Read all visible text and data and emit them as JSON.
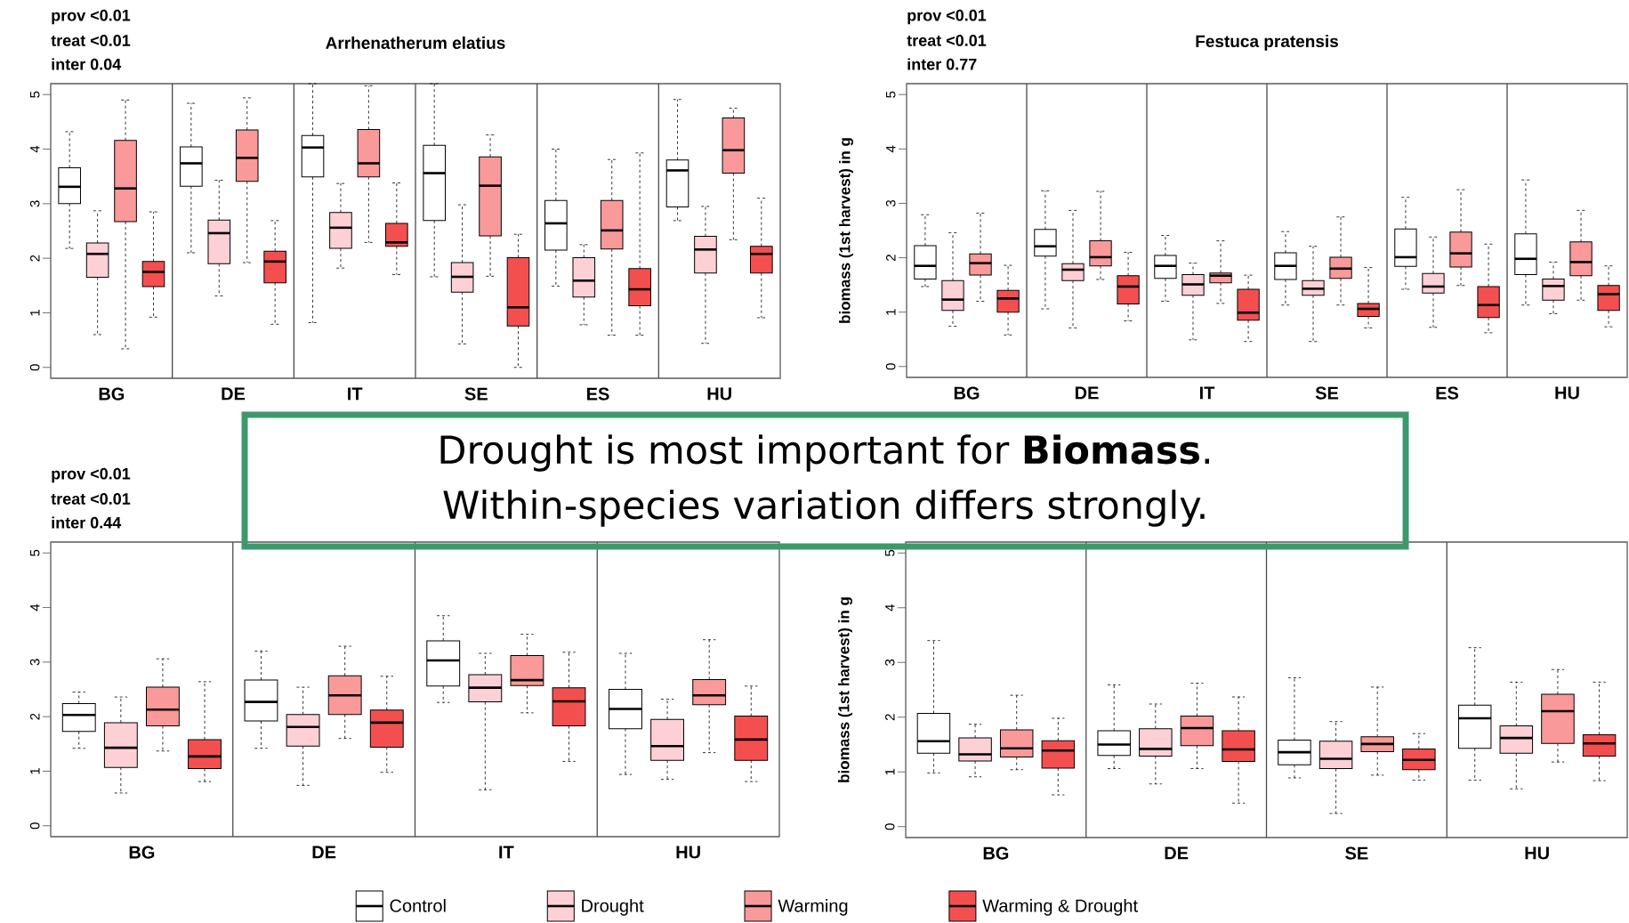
{
  "chart_data": [
    {
      "type": "box",
      "title": "Arrhenatherum elatius",
      "annotations": [
        "prov <0.01",
        "treat <0.01",
        "inter 0.04",
        "Drought is most important for **Biomass**.",
        "Within-species variation differs strongly."
      ],
      "categories": [
        "BG",
        "DE",
        "IT",
        "SE",
        "ES",
        "HU"
      ],
      "ylim": [
        -0.2,
        5.2
      ],
      "yticks": [
        0,
        1,
        2,
        3,
        4,
        5
      ],
      "series": [
        {
          "color": "#ffffff",
          "boxes": [
            {
              "low": 2.18,
              "q1": 3.0,
              "median": 3.31,
              "q3": 3.66,
              "high": 4.32
            },
            {
              "low": 2.1,
              "q1": 3.32,
              "median": 3.74,
              "q3": 4.04,
              "high": 4.84
            },
            {
              "low": 0.82,
              "q1": 3.49,
              "median": 4.03,
              "q3": 4.25,
              "high": 5.2
            },
            {
              "low": 1.66,
              "q1": 2.69,
              "median": 3.56,
              "q3": 4.07,
              "high": 5.2
            },
            {
              "low": 1.49,
              "q1": 2.15,
              "median": 2.64,
              "q3": 3.06,
              "high": 4.0
            },
            {
              "low": 2.69,
              "q1": 2.94,
              "median": 3.61,
              "q3": 3.8,
              "high": 4.91
            }
          ]
        },
        {
          "color": "#fdd0d6",
          "boxes": [
            {
              "low": 0.6,
              "q1": 1.65,
              "median": 2.08,
              "q3": 2.28,
              "high": 2.87
            },
            {
              "low": 1.31,
              "q1": 1.9,
              "median": 2.46,
              "q3": 2.7,
              "high": 3.43
            },
            {
              "low": 1.82,
              "q1": 2.18,
              "median": 2.56,
              "q3": 2.84,
              "high": 3.37
            },
            {
              "low": 0.43,
              "q1": 1.38,
              "median": 1.66,
              "q3": 1.92,
              "high": 2.98
            },
            {
              "low": 0.78,
              "q1": 1.29,
              "median": 1.59,
              "q3": 2.01,
              "high": 2.25
            },
            {
              "low": 0.44,
              "q1": 1.73,
              "median": 2.16,
              "q3": 2.4,
              "high": 2.95
            }
          ]
        },
        {
          "color": "#f99999",
          "boxes": [
            {
              "low": 0.34,
              "q1": 2.67,
              "median": 3.28,
              "q3": 4.16,
              "high": 4.9
            },
            {
              "low": 1.92,
              "q1": 3.41,
              "median": 3.84,
              "q3": 4.35,
              "high": 4.94
            },
            {
              "low": 2.29,
              "q1": 3.49,
              "median": 3.74,
              "q3": 4.36,
              "high": 5.16
            },
            {
              "low": 1.67,
              "q1": 2.41,
              "median": 3.33,
              "q3": 3.86,
              "high": 4.26
            },
            {
              "low": 0.59,
              "q1": 2.17,
              "median": 2.51,
              "q3": 3.06,
              "high": 3.81
            },
            {
              "low": 2.34,
              "q1": 3.56,
              "median": 3.98,
              "q3": 4.57,
              "high": 4.75
            }
          ]
        },
        {
          "color": "#f44f4f",
          "boxes": [
            {
              "low": 0.92,
              "q1": 1.48,
              "median": 1.75,
              "q3": 1.94,
              "high": 2.85
            },
            {
              "low": 0.79,
              "q1": 1.55,
              "median": 1.94,
              "q3": 2.13,
              "high": 2.69
            },
            {
              "low": 1.7,
              "q1": 2.22,
              "median": 2.29,
              "q3": 2.64,
              "high": 3.38
            },
            {
              "low": 0,
              "q1": 0.76,
              "median": 1.1,
              "q3": 2.01,
              "high": 2.44
            },
            {
              "low": 0.59,
              "q1": 1.13,
              "median": 1.43,
              "q3": 1.81,
              "high": 3.93
            },
            {
              "low": 0.91,
              "q1": 1.73,
              "median": 2.08,
              "q3": 2.22,
              "high": 3.1
            }
          ]
        }
      ]
    },
    {
      "type": "box",
      "title": "Festuca pratensis",
      "ylabel": "biomass (1st harvest) in g",
      "annotations": [
        "prov <0.01",
        "treat <0.01",
        "inter 0.77"
      ],
      "categories": [
        "BG",
        "DE",
        "IT",
        "SE",
        "ES",
        "HU"
      ],
      "ylim": [
        -0.2,
        5.2
      ],
      "yticks": [
        0,
        1,
        2,
        3,
        4,
        5
      ],
      "series": [
        {
          "color": "#ffffff",
          "boxes": [
            {
              "low": 1.47,
              "q1": 1.61,
              "median": 1.85,
              "q3": 2.22,
              "high": 2.79
            },
            {
              "low": 1.06,
              "q1": 2.03,
              "median": 2.21,
              "q3": 2.52,
              "high": 3.23
            },
            {
              "low": 1.2,
              "q1": 1.62,
              "median": 1.85,
              "q3": 2.04,
              "high": 2.41
            },
            {
              "low": 1.13,
              "q1": 1.6,
              "median": 1.85,
              "q3": 2.09,
              "high": 2.48
            },
            {
              "low": 1.42,
              "q1": 1.84,
              "median": 2.01,
              "q3": 2.53,
              "high": 3.11
            },
            {
              "low": 1.13,
              "q1": 1.69,
              "median": 1.98,
              "q3": 2.44,
              "high": 3.43
            }
          ]
        },
        {
          "color": "#fdd0d6",
          "boxes": [
            {
              "low": 0.74,
              "q1": 1.03,
              "median": 1.23,
              "q3": 1.58,
              "high": 2.46
            },
            {
              "low": 0.71,
              "q1": 1.58,
              "median": 1.78,
              "q3": 1.89,
              "high": 2.87
            },
            {
              "low": 0.49,
              "q1": 1.31,
              "median": 1.51,
              "q3": 1.69,
              "high": 1.9
            },
            {
              "low": 0.46,
              "q1": 1.31,
              "median": 1.43,
              "q3": 1.58,
              "high": 2.21
            },
            {
              "low": 0.72,
              "q1": 1.35,
              "median": 1.47,
              "q3": 1.71,
              "high": 2.38
            },
            {
              "low": 0.97,
              "q1": 1.22,
              "median": 1.48,
              "q3": 1.61,
              "high": 1.92
            }
          ]
        },
        {
          "color": "#f99999",
          "boxes": [
            {
              "low": 1.2,
              "q1": 1.68,
              "median": 1.9,
              "q3": 2.07,
              "high": 2.82
            },
            {
              "low": 1.6,
              "q1": 1.85,
              "median": 2.01,
              "q3": 2.31,
              "high": 3.22
            },
            {
              "low": 1.16,
              "q1": 1.54,
              "median": 1.67,
              "q3": 1.72,
              "high": 2.31
            },
            {
              "low": 1.13,
              "q1": 1.62,
              "median": 1.8,
              "q3": 2.01,
              "high": 2.75
            },
            {
              "low": 1.49,
              "q1": 1.83,
              "median": 2.08,
              "q3": 2.47,
              "high": 3.25
            },
            {
              "low": 1.22,
              "q1": 1.67,
              "median": 1.92,
              "q3": 2.29,
              "high": 2.87
            }
          ]
        },
        {
          "color": "#f44f4f",
          "boxes": [
            {
              "low": 0.58,
              "q1": 1.0,
              "median": 1.25,
              "q3": 1.4,
              "high": 1.86
            },
            {
              "low": 0.84,
              "q1": 1.15,
              "median": 1.47,
              "q3": 1.67,
              "high": 2.1
            },
            {
              "low": 0.46,
              "q1": 0.85,
              "median": 0.99,
              "q3": 1.42,
              "high": 1.68
            },
            {
              "low": 0.71,
              "q1": 0.92,
              "median": 1.06,
              "q3": 1.16,
              "high": 1.82
            },
            {
              "low": 0.62,
              "q1": 0.9,
              "median": 1.13,
              "q3": 1.47,
              "high": 2.25
            },
            {
              "low": 0.73,
              "q1": 1.03,
              "median": 1.33,
              "q3": 1.49,
              "high": 1.85
            }
          ]
        }
      ]
    },
    {
      "type": "box",
      "annotations": [
        "prov <0.01",
        "treat <0.01",
        "inter 0.44"
      ],
      "categories": [
        "BG",
        "DE",
        "IT",
        "HU"
      ],
      "ylim": [
        -0.2,
        5.2
      ],
      "yticks": [
        0,
        1,
        2,
        3,
        4,
        5
      ],
      "legend": "bottom",
      "series": [
        {
          "name": "Control",
          "color": "#ffffff",
          "boxes": [
            {
              "low": 1.42,
              "q1": 1.73,
              "median": 2.03,
              "q3": 2.24,
              "high": 2.45
            },
            {
              "low": 1.42,
              "q1": 1.92,
              "median": 2.27,
              "q3": 2.67,
              "high": 3.2
            },
            {
              "low": 2.26,
              "q1": 2.56,
              "median": 3.03,
              "q3": 3.39,
              "high": 3.85
            },
            {
              "low": 0.94,
              "q1": 1.78,
              "median": 2.14,
              "q3": 2.5,
              "high": 3.16
            }
          ]
        },
        {
          "name": "Drought",
          "color": "#fdd0d6",
          "boxes": [
            {
              "low": 0.6,
              "q1": 1.07,
              "median": 1.43,
              "q3": 1.89,
              "high": 2.36
            },
            {
              "low": 0.74,
              "q1": 1.46,
              "median": 1.81,
              "q3": 2.04,
              "high": 2.54
            },
            {
              "low": 0.66,
              "q1": 2.27,
              "median": 2.53,
              "q3": 2.77,
              "high": 3.16
            },
            {
              "low": 0.85,
              "q1": 1.2,
              "median": 1.46,
              "q3": 1.95,
              "high": 2.32
            }
          ]
        },
        {
          "name": "Warming",
          "color": "#f99999",
          "boxes": [
            {
              "low": 1.37,
              "q1": 1.83,
              "median": 2.13,
              "q3": 2.54,
              "high": 3.06
            },
            {
              "low": 1.6,
              "q1": 2.04,
              "median": 2.39,
              "q3": 2.75,
              "high": 3.29
            },
            {
              "low": 2.07,
              "q1": 2.57,
              "median": 2.67,
              "q3": 3.12,
              "high": 3.51
            },
            {
              "low": 1.34,
              "q1": 2.22,
              "median": 2.39,
              "q3": 2.68,
              "high": 3.41
            }
          ]
        },
        {
          "name": "Warming & Drought",
          "color": "#f44f4f",
          "boxes": [
            {
              "low": 0.81,
              "q1": 1.05,
              "median": 1.27,
              "q3": 1.58,
              "high": 2.64
            },
            {
              "low": 0.98,
              "q1": 1.44,
              "median": 1.89,
              "q3": 2.12,
              "high": 2.74
            },
            {
              "low": 1.18,
              "q1": 1.83,
              "median": 2.28,
              "q3": 2.53,
              "high": 3.18
            },
            {
              "low": 0.81,
              "q1": 1.2,
              "median": 1.58,
              "q3": 2.01,
              "high": 2.56
            }
          ]
        }
      ]
    },
    {
      "type": "box",
      "ylabel": "biomass (1st harvest) in g",
      "categories": [
        "BG",
        "DE",
        "SE",
        "HU"
      ],
      "ylim": [
        -0.2,
        5.2
      ],
      "yticks": [
        0,
        1,
        2,
        3,
        4,
        5
      ],
      "series": [
        {
          "color": "#ffffff",
          "boxes": [
            {
              "low": 0.98,
              "q1": 1.34,
              "median": 1.56,
              "q3": 2.07,
              "high": 3.4
            },
            {
              "low": 1.06,
              "q1": 1.3,
              "median": 1.5,
              "q3": 1.75,
              "high": 2.59
            },
            {
              "low": 0.89,
              "q1": 1.13,
              "median": 1.36,
              "q3": 1.58,
              "high": 2.72
            },
            {
              "low": 0.85,
              "q1": 1.43,
              "median": 1.98,
              "q3": 2.22,
              "high": 3.27
            }
          ]
        },
        {
          "color": "#fdd0d6",
          "boxes": [
            {
              "low": 0.91,
              "q1": 1.2,
              "median": 1.32,
              "q3": 1.62,
              "high": 1.87
            },
            {
              "low": 0.78,
              "q1": 1.29,
              "median": 1.42,
              "q3": 1.79,
              "high": 2.24
            },
            {
              "low": 0.24,
              "q1": 1.06,
              "median": 1.24,
              "q3": 1.56,
              "high": 1.92
            },
            {
              "low": 0.69,
              "q1": 1.34,
              "median": 1.62,
              "q3": 1.84,
              "high": 2.64
            }
          ]
        },
        {
          "color": "#f99999",
          "boxes": [
            {
              "low": 1.04,
              "q1": 1.27,
              "median": 1.43,
              "q3": 1.77,
              "high": 2.4
            },
            {
              "low": 1.06,
              "q1": 1.48,
              "median": 1.8,
              "q3": 2.02,
              "high": 2.62
            },
            {
              "low": 0.94,
              "q1": 1.37,
              "median": 1.51,
              "q3": 1.64,
              "high": 2.55
            },
            {
              "low": 1.18,
              "q1": 1.52,
              "median": 2.11,
              "q3": 2.42,
              "high": 2.87
            }
          ]
        },
        {
          "color": "#f44f4f",
          "boxes": [
            {
              "low": 0.58,
              "q1": 1.07,
              "median": 1.39,
              "q3": 1.57,
              "high": 1.98
            },
            {
              "low": 0.43,
              "q1": 1.19,
              "median": 1.41,
              "q3": 1.75,
              "high": 2.37
            },
            {
              "low": 0.85,
              "q1": 1.04,
              "median": 1.22,
              "q3": 1.42,
              "high": 1.7
            },
            {
              "low": 0.84,
              "q1": 1.29,
              "median": 1.52,
              "q3": 1.68,
              "high": 2.64
            }
          ]
        }
      ]
    }
  ]
}
